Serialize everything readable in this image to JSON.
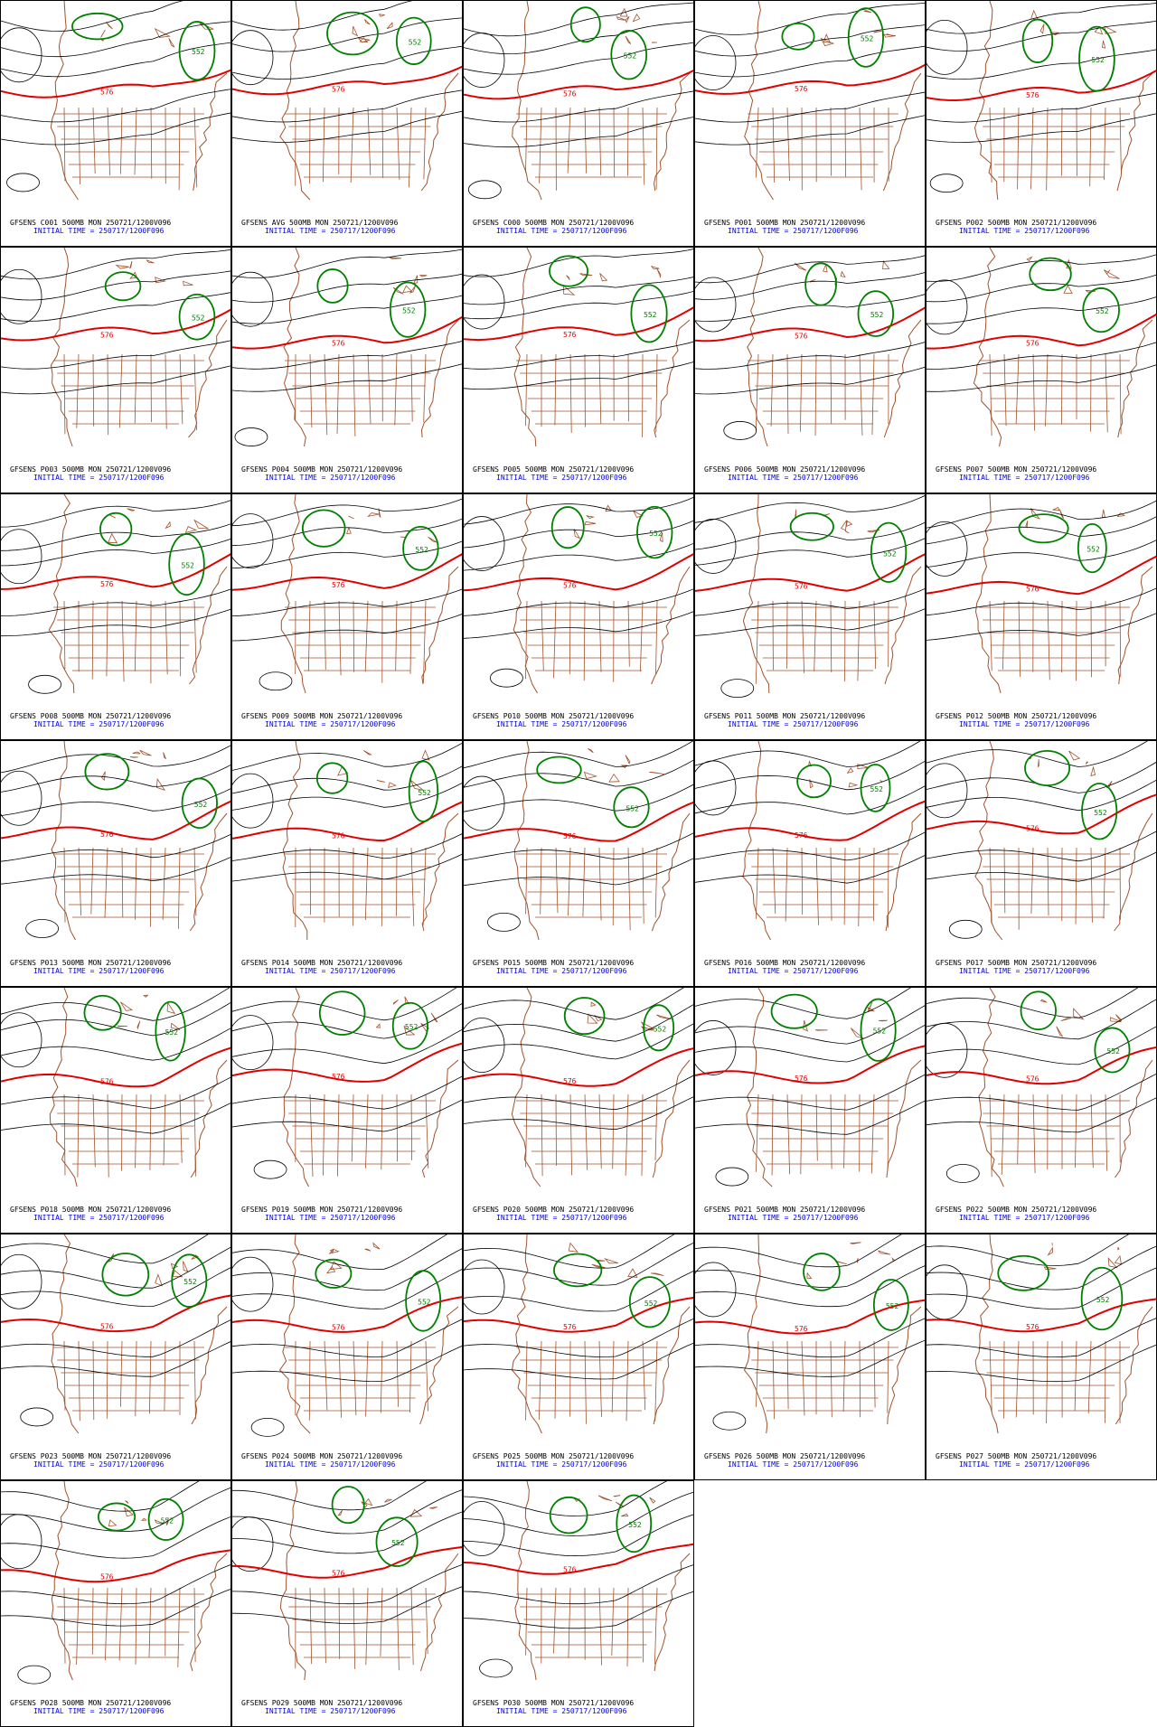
{
  "panels": [
    {
      "title": "GFSENS C001 500MB MON 250721/1200V096",
      "init": "INITIAL TIME = 250717/1200F096",
      "labels": [
        "576",
        "552"
      ]
    },
    {
      "title": "GFSENS AVG 500MB MON 250721/1200V096",
      "init": "INITIAL TIME = 250717/1200F096",
      "labels": [
        "576",
        "552"
      ]
    },
    {
      "title": "GFSENS C000 500MB MON 250721/1200V096",
      "init": "INITIAL TIME = 250717/1200F096",
      "labels": [
        "576",
        "552"
      ]
    },
    {
      "title": "GFSENS P001 500MB MON 250721/1200V096",
      "init": "INITIAL TIME = 250717/1200F096",
      "labels": [
        "576",
        "552"
      ]
    },
    {
      "title": "GFSENS P002 500MB MON 250721/1200V096",
      "init": "INITIAL TIME = 250717/1200F096",
      "labels": [
        "576",
        "552"
      ]
    },
    {
      "title": "GFSENS P003 500MB MON 250721/1200V096",
      "init": "INITIAL TIME = 250717/1200F096",
      "labels": [
        "576",
        "552"
      ]
    },
    {
      "title": "GFSENS P004 500MB MON 250721/1200V096",
      "init": "INITIAL TIME = 250717/1200F096",
      "labels": [
        "576",
        "552"
      ]
    },
    {
      "title": "GFSENS P005 500MB MON 250721/1200V096",
      "init": "INITIAL TIME = 250717/1200F096",
      "labels": [
        "576",
        "552"
      ]
    },
    {
      "title": "GFSENS P006 500MB MON 250721/1200V096",
      "init": "INITIAL TIME = 250717/1200F096",
      "labels": [
        "576",
        "552"
      ]
    },
    {
      "title": "GFSENS P007 500MB MON 250721/1200V096",
      "init": "INITIAL TIME = 250717/1200F096",
      "labels": [
        "576",
        "552"
      ]
    },
    {
      "title": "GFSENS P008 500MB MON 250721/1200V096",
      "init": "INITIAL TIME = 250717/1200F096",
      "labels": [
        "576",
        "552"
      ]
    },
    {
      "title": "GFSENS P009 500MB MON 250721/1200V096",
      "init": "INITIAL TIME = 250717/1200F096",
      "labels": [
        "576",
        "552"
      ]
    },
    {
      "title": "GFSENS P010 500MB MON 250721/1200V096",
      "init": "INITIAL TIME = 250717/1200F096",
      "labels": [
        "576",
        "552"
      ]
    },
    {
      "title": "GFSENS P011 500MB MON 250721/1200V096",
      "init": "INITIAL TIME = 250717/1200F096",
      "labels": [
        "576",
        "552"
      ]
    },
    {
      "title": "GFSENS P012 500MB MON 250721/1200V096",
      "init": "INITIAL TIME = 250717/1200F096",
      "labels": [
        "576",
        "552"
      ]
    },
    {
      "title": "GFSENS P013 500MB MON 250721/1200V096",
      "init": "INITIAL TIME = 250717/1200F096",
      "labels": [
        "576",
        "552"
      ]
    },
    {
      "title": "GFSENS P014 500MB MON 250721/1200V096",
      "init": "INITIAL TIME = 250717/1200F096",
      "labels": [
        "576",
        "552"
      ]
    },
    {
      "title": "GFSENS P015 500MB MON 250721/1200V096",
      "init": "INITIAL TIME = 250717/1200F096",
      "labels": [
        "576",
        "552"
      ]
    },
    {
      "title": "GFSENS P016 500MB MON 250721/1200V096",
      "init": "INITIAL TIME = 250717/1200F096",
      "labels": [
        "576",
        "552"
      ]
    },
    {
      "title": "GFSENS P017 500MB MON 250721/1200V096",
      "init": "INITIAL TIME = 250717/1200F096",
      "labels": [
        "576",
        "552"
      ]
    },
    {
      "title": "GFSENS P018 500MB MON 250721/1200V096",
      "init": "INITIAL TIME = 250717/1200F096",
      "labels": [
        "576",
        "552"
      ]
    },
    {
      "title": "GFSENS P019 500MB MON 250721/1200V096",
      "init": "INITIAL TIME = 250717/1200F096",
      "labels": [
        "576",
        "552"
      ]
    },
    {
      "title": "GFSENS P020 500MB MON 250721/1200V096",
      "init": "INITIAL TIME = 250717/1200F096",
      "labels": [
        "576",
        "552"
      ]
    },
    {
      "title": "GFSENS P021 500MB MON 250721/1200V096",
      "init": "INITIAL TIME = 250717/1200F096",
      "labels": [
        "576",
        "552"
      ]
    },
    {
      "title": "GFSENS P022 500MB MON 250721/1200V096",
      "init": "INITIAL TIME = 250717/1200F096",
      "labels": [
        "576",
        "552"
      ]
    },
    {
      "title": "GFSENS P023 500MB MON 250721/1200V096",
      "init": "INITIAL TIME = 250717/1200F096",
      "labels": [
        "576",
        "552"
      ]
    },
    {
      "title": "GFSENS P024 500MB MON 250721/1200V096",
      "init": "INITIAL TIME = 250717/1200F096",
      "labels": [
        "576",
        "552"
      ]
    },
    {
      "title": "GFSENS P025 500MB MON 250721/1200V096",
      "init": "INITIAL TIME = 250717/1200F096",
      "labels": [
        "576",
        "552"
      ]
    },
    {
      "title": "GFSENS P026 500MB MON 250721/1200V096",
      "init": "INITIAL TIME = 250717/1200F096",
      "labels": [
        "576",
        "552"
      ]
    },
    {
      "title": "GFSENS P027 500MB MON 250721/1200V096",
      "init": "INITIAL TIME = 250717/1200F096",
      "labels": [
        "576",
        "552"
      ]
    },
    {
      "title": "GFSENS P028 500MB MON 250721/1200V096",
      "init": "INITIAL TIME = 250717/1200F096",
      "labels": [
        "576",
        "552"
      ]
    },
    {
      "title": "GFSENS P029 500MB MON 250721/1200V096",
      "init": "INITIAL TIME = 250717/1200F096",
      "labels": [
        "576",
        "552"
      ]
    },
    {
      "title": "GFSENS P030 500MB MON 250721/1200V096",
      "init": "INITIAL TIME = 250717/1200F096",
      "labels": [
        "576",
        "552"
      ]
    }
  ]
}
